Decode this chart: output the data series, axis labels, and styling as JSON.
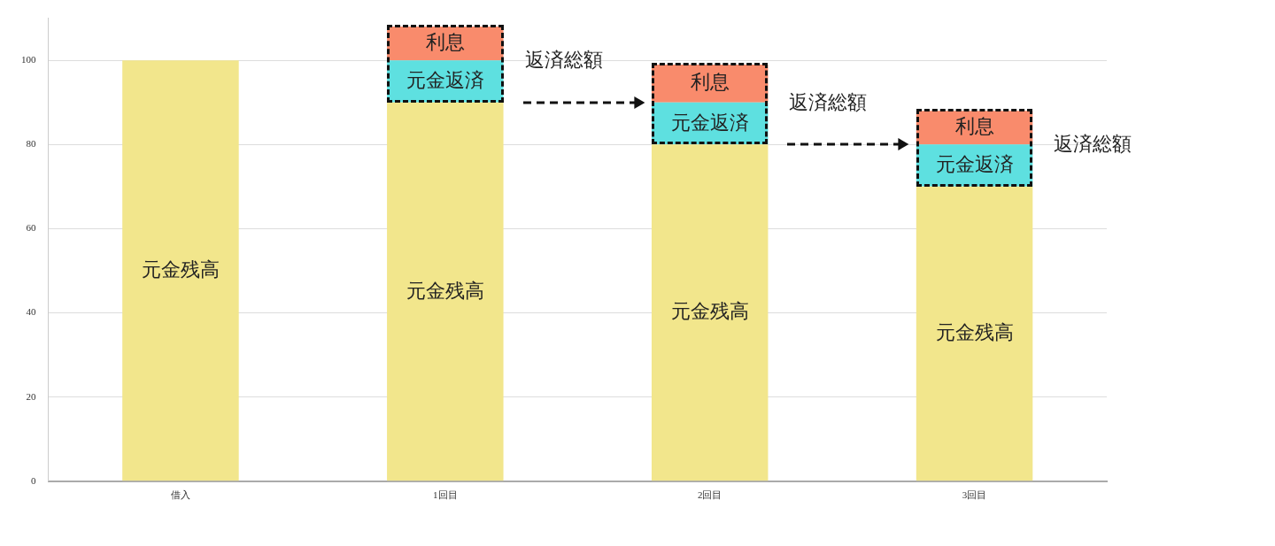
{
  "chart_data": {
    "type": "bar",
    "stacked": true,
    "categories": [
      "借入",
      "1回目",
      "2回目",
      "3回目"
    ],
    "series": [
      {
        "name": "元金残高",
        "color": "#f2e68c",
        "values": [
          100,
          90,
          80,
          70
        ]
      },
      {
        "name": "元金返済",
        "color": "#5ee0e0",
        "values": [
          null,
          10,
          10,
          10
        ]
      },
      {
        "name": "利息",
        "color": "#f98b6c",
        "values": [
          null,
          8,
          9,
          8
        ]
      }
    ],
    "ylim": [
      0,
      110
    ],
    "yticks": [
      0,
      20,
      40,
      60,
      80,
      100
    ],
    "grid": "y",
    "legend": false,
    "annotations": [
      "返済総額",
      "返済総額",
      "返済総額"
    ]
  }
}
